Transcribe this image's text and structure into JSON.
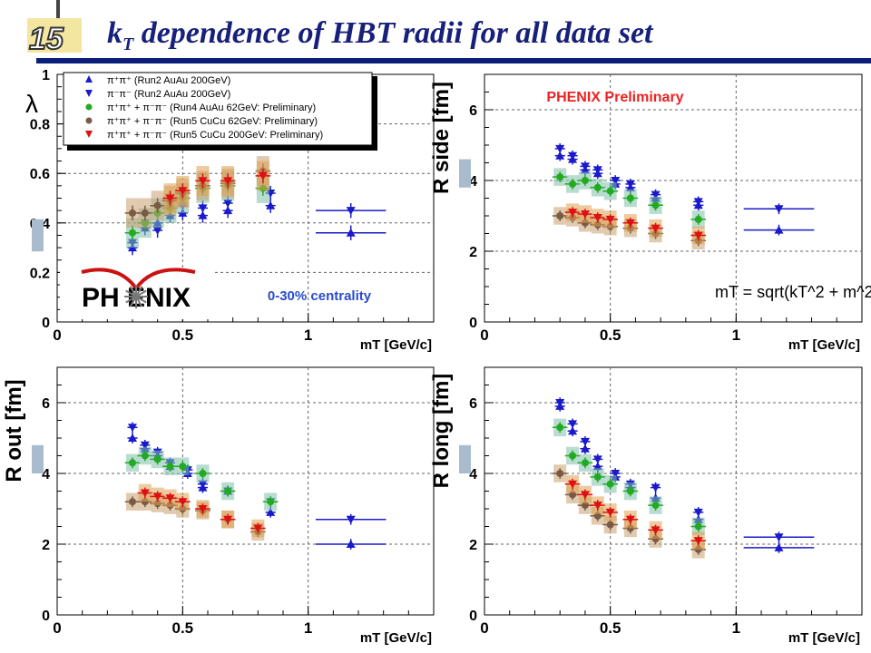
{
  "slide": {
    "title_main": "k",
    "title_sub": "T",
    "title_rest": " dependence of HBT radii for all data set",
    "logo_text": "15"
  },
  "colors": {
    "title": "#17207a",
    "bar": "#0a1e7a",
    "run2": "#1a1acc",
    "run4": "#22aa22",
    "run5_62": "#7a5a44",
    "run5_200": "#dd1111",
    "sys_green": "#7fbfaa",
    "sys_brown": "#c9a070",
    "sys_red": "#e0a050",
    "preliminary": "#ee2222"
  },
  "annotations": {
    "preliminary": "PHENIX Preliminary",
    "centrality": "0-30% centrality",
    "phenix_logo": "PH  ENIX",
    "formula": "mT = sqrt(kT^2 + m^2)"
  },
  "legend": [
    {
      "label": "π⁺π⁺ (Run2 AuAu 200GeV)",
      "marker": "tri-up",
      "color": "#1a1acc"
    },
    {
      "label": "π⁻π⁻ (Run2 AuAu 200GeV)",
      "marker": "tri-down",
      "color": "#1a1acc"
    },
    {
      "label": "π⁺π⁺ + π⁻π⁻ (Run4 AuAu 62GeV: Preliminary)",
      "marker": "circle",
      "color": "#22aa22"
    },
    {
      "label": "π⁺π⁺ + π⁻π⁻ (Run5 CuCu 62GeV: Preliminary)",
      "marker": "circle",
      "color": "#7a5a44"
    },
    {
      "label": "π⁺π⁺ + π⁻π⁻ (Run5 CuCu 200GeV: Preliminary)",
      "marker": "tri-down",
      "color": "#dd1111"
    }
  ],
  "chart_data": [
    {
      "type": "scatter",
      "panel": "lambda",
      "ylabel": "λ",
      "xlabel": "mT [GeV/c]",
      "xlim": [
        0,
        1.5
      ],
      "ylim": [
        0,
        1
      ],
      "yticks": [
        "0",
        "0.2",
        "0.4",
        "0.6",
        "0.8",
        "1"
      ],
      "xticks": [
        "0",
        "0.5",
        "1"
      ],
      "series": [
        {
          "name": "π⁺π⁺ (Run2 AuAu 200GeV)",
          "marker": "tri-up",
          "x": [
            0.3,
            0.35,
            0.4,
            0.45,
            0.5,
            0.58,
            0.68,
            0.85,
            1.17
          ],
          "y": [
            0.3,
            0.38,
            0.4,
            0.43,
            0.44,
            0.43,
            0.45,
            0.47,
            0.36
          ]
        },
        {
          "name": "π⁻π⁻ (Run2 AuAu 200GeV)",
          "marker": "tri-down",
          "x": [
            0.3,
            0.35,
            0.4,
            0.45,
            0.5,
            0.58,
            0.68,
            0.85,
            1.17
          ],
          "y": [
            0.32,
            0.4,
            0.37,
            0.46,
            0.47,
            0.46,
            0.48,
            0.52,
            0.45
          ]
        },
        {
          "name": "π⁺π⁺ + π⁻π⁻ (Run4 AuAu 62GeV: Preliminary)",
          "marker": "circle",
          "x": [
            0.3,
            0.35,
            0.4,
            0.45,
            0.5,
            0.58,
            0.68,
            0.82
          ],
          "y": [
            0.36,
            0.4,
            0.44,
            0.46,
            0.5,
            0.54,
            0.55,
            0.54
          ]
        },
        {
          "name": "π⁺π⁺ + π⁻π⁻ (Run5 CuCu 62GeV: Preliminary)",
          "marker": "circle",
          "x": [
            0.3,
            0.35,
            0.4,
            0.45,
            0.5,
            0.58,
            0.68,
            0.82
          ],
          "y": [
            0.44,
            0.44,
            0.47,
            0.49,
            0.52,
            0.55,
            0.56,
            0.61
          ]
        },
        {
          "name": "π⁺π⁺ + π⁻π⁻ (Run5 CuCu 200GeV: Preliminary)",
          "marker": "tri-down",
          "x": [
            0.45,
            0.5,
            0.58,
            0.68,
            0.82
          ],
          "y": [
            0.5,
            0.53,
            0.57,
            0.57,
            0.59
          ]
        }
      ]
    },
    {
      "type": "scatter",
      "panel": "Rside",
      "ylabel": "R side [fm]",
      "xlabel": "mT [GeV/c]",
      "xlim": [
        0,
        1.5
      ],
      "ylim": [
        0,
        7
      ],
      "yticks": [
        "0",
        "2",
        "4",
        "6"
      ],
      "xticks": [
        "0",
        "0.5",
        "1"
      ],
      "series": [
        {
          "name": "π⁺π⁺ (Run2 AuAu 200GeV)",
          "marker": "tri-up",
          "x": [
            0.3,
            0.35,
            0.4,
            0.45,
            0.52,
            0.58,
            0.68,
            0.85,
            1.17
          ],
          "y": [
            4.7,
            4.6,
            4.3,
            4.2,
            3.9,
            3.8,
            3.5,
            3.3,
            2.6
          ]
        },
        {
          "name": "π⁻π⁻ (Run2 AuAu 200GeV)",
          "marker": "tri-down",
          "x": [
            0.3,
            0.35,
            0.4,
            0.45,
            0.52,
            0.58,
            0.68,
            0.85,
            1.17
          ],
          "y": [
            4.9,
            4.7,
            4.4,
            4.3,
            4.0,
            3.9,
            3.6,
            3.4,
            3.2
          ]
        },
        {
          "name": "π⁺π⁺ + π⁻π⁻ (Run4 AuAu 62GeV: Preliminary)",
          "marker": "circle",
          "x": [
            0.3,
            0.35,
            0.4,
            0.45,
            0.5,
            0.58,
            0.68,
            0.85
          ],
          "y": [
            4.1,
            3.9,
            4.0,
            3.8,
            3.7,
            3.5,
            3.3,
            2.9
          ]
        },
        {
          "name": "π⁺π⁺ + π⁻π⁻ (Run5 CuCu 62GeV: Preliminary)",
          "marker": "circle",
          "x": [
            0.3,
            0.35,
            0.4,
            0.45,
            0.5,
            0.58,
            0.68,
            0.85
          ],
          "y": [
            3.0,
            2.95,
            2.8,
            2.75,
            2.7,
            2.65,
            2.5,
            2.3
          ]
        },
        {
          "name": "π⁺π⁺ + π⁻π⁻ (Run5 CuCu 200GeV: Preliminary)",
          "marker": "tri-down",
          "x": [
            0.35,
            0.4,
            0.45,
            0.5,
            0.58,
            0.68,
            0.85
          ],
          "y": [
            3.1,
            3.05,
            2.95,
            2.9,
            2.8,
            2.65,
            2.45
          ]
        }
      ]
    },
    {
      "type": "scatter",
      "panel": "Rout",
      "ylabel": "R out [fm]",
      "xlabel": "mT [GeV/c]",
      "xlim": [
        0,
        1.5
      ],
      "ylim": [
        0,
        7
      ],
      "yticks": [
        "0",
        "2",
        "4",
        "6"
      ],
      "xticks": [
        "0",
        "0.5",
        "1"
      ],
      "series": [
        {
          "name": "π⁺π⁺ (Run2 AuAu 200GeV)",
          "marker": "tri-up",
          "x": [
            0.3,
            0.35,
            0.4,
            0.45,
            0.52,
            0.58,
            0.68,
            0.85,
            1.17
          ],
          "y": [
            5.0,
            4.7,
            4.5,
            4.2,
            4.0,
            3.6,
            3.5,
            2.9,
            2.0
          ]
        },
        {
          "name": "π⁻π⁻ (Run2 AuAu 200GeV)",
          "marker": "tri-down",
          "x": [
            0.3,
            0.35,
            0.4,
            0.45,
            0.52,
            0.58,
            0.68,
            0.85,
            1.17
          ],
          "y": [
            5.3,
            4.8,
            4.6,
            4.3,
            4.1,
            3.7,
            3.5,
            3.2,
            2.7
          ]
        },
        {
          "name": "π⁺π⁺ + π⁻π⁻ (Run4 AuAu 62GeV: Preliminary)",
          "marker": "circle",
          "x": [
            0.3,
            0.35,
            0.4,
            0.45,
            0.5,
            0.58,
            0.68,
            0.85
          ],
          "y": [
            4.3,
            4.5,
            4.4,
            4.2,
            4.2,
            4.0,
            3.5,
            3.2
          ]
        },
        {
          "name": "π⁺π⁺ + π⁻π⁻ (Run5 CuCu 62GeV: Preliminary)",
          "marker": "circle",
          "x": [
            0.3,
            0.35,
            0.4,
            0.45,
            0.5,
            0.58,
            0.68,
            0.8
          ],
          "y": [
            3.2,
            3.2,
            3.15,
            3.1,
            3.0,
            2.95,
            2.7,
            2.35
          ]
        },
        {
          "name": "π⁺π⁺ + π⁻π⁻ (Run5 CuCu 200GeV: Preliminary)",
          "marker": "tri-down",
          "x": [
            0.35,
            0.4,
            0.45,
            0.5,
            0.58,
            0.68,
            0.8
          ],
          "y": [
            3.45,
            3.35,
            3.3,
            3.2,
            3.0,
            2.7,
            2.45
          ]
        }
      ]
    },
    {
      "type": "scatter",
      "panel": "Rlong",
      "ylabel": "R long [fm]",
      "xlabel": "mT [GeV/c]",
      "xlim": [
        0,
        1.5
      ],
      "ylim": [
        0,
        7
      ],
      "yticks": [
        "0",
        "2",
        "4",
        "6"
      ],
      "xticks": [
        "0",
        "0.5",
        "1"
      ],
      "series": [
        {
          "name": "π⁺π⁺ (Run2 AuAu 200GeV)",
          "marker": "tri-up",
          "x": [
            0.3,
            0.35,
            0.4,
            0.45,
            0.52,
            0.58,
            0.68,
            0.85,
            1.17
          ],
          "y": [
            5.9,
            5.2,
            4.7,
            4.2,
            3.9,
            3.6,
            3.3,
            2.7,
            1.9
          ]
        },
        {
          "name": "π⁻π⁻ (Run2 AuAu 200GeV)",
          "marker": "tri-down",
          "x": [
            0.3,
            0.35,
            0.4,
            0.45,
            0.52,
            0.58,
            0.68,
            0.85,
            1.17
          ],
          "y": [
            6.0,
            5.4,
            4.9,
            4.4,
            4.0,
            3.7,
            3.6,
            2.9,
            2.2
          ]
        },
        {
          "name": "π⁺π⁺ + π⁻π⁻ (Run4 AuAu 62GeV: Preliminary)",
          "marker": "circle",
          "x": [
            0.3,
            0.35,
            0.4,
            0.45,
            0.5,
            0.58,
            0.68,
            0.85
          ],
          "y": [
            5.3,
            4.5,
            4.3,
            3.9,
            3.7,
            3.5,
            3.1,
            2.5
          ]
        },
        {
          "name": "π⁺π⁺ + π⁻π⁻ (Run5 CuCu 62GeV: Preliminary)",
          "marker": "circle",
          "x": [
            0.3,
            0.35,
            0.4,
            0.45,
            0.5,
            0.58,
            0.68,
            0.85
          ],
          "y": [
            4.0,
            3.4,
            3.1,
            2.8,
            2.55,
            2.45,
            2.15,
            1.85
          ]
        },
        {
          "name": "π⁺π⁺ + π⁻π⁻ (Run5 CuCu 200GeV: Preliminary)",
          "marker": "tri-down",
          "x": [
            0.35,
            0.4,
            0.45,
            0.5,
            0.58,
            0.68,
            0.85
          ],
          "y": [
            3.7,
            3.4,
            3.1,
            2.9,
            2.7,
            2.4,
            2.1
          ]
        }
      ]
    }
  ]
}
